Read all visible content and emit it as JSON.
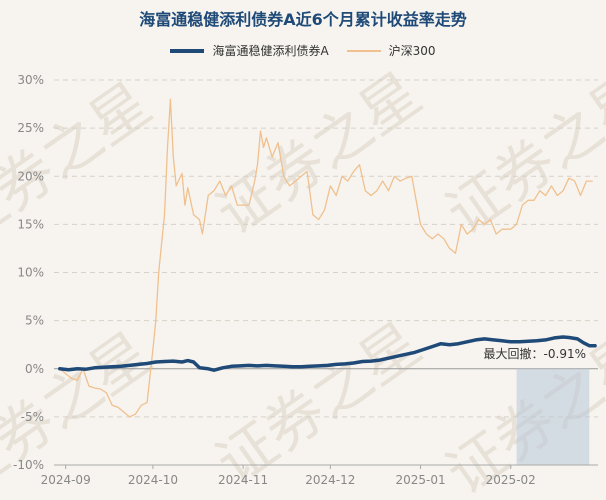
{
  "chart_data": {
    "type": "line",
    "title": "海富通稳健添利债券A近6个月累计收益率走势",
    "x_ticks": [
      "2024-09",
      "2024-10",
      "2024-11",
      "2024-12",
      "2025-01",
      "2025-02"
    ],
    "y_ticks": [
      "30%",
      "25%",
      "20%",
      "15%",
      "10%",
      "5%",
      "0%",
      "-5%",
      "-10%"
    ],
    "ylim": [
      -10,
      30
    ],
    "y_unit": "%",
    "grid": "horizontal dashed",
    "legend_position": "top-center",
    "watermark": "证券之星",
    "annotation": {
      "label": "最大回撤：-0.91%",
      "shaded_range": [
        "2025-02-03",
        "2025-02-28"
      ]
    },
    "series": [
      {
        "name": "海富通稳健添利债券A",
        "color": "#1f4a78",
        "points": [
          [
            "2024-08-30",
            0.0
          ],
          [
            "2024-09-02",
            -0.1
          ],
          [
            "2024-09-05",
            0.0
          ],
          [
            "2024-09-08",
            -0.05
          ],
          [
            "2024-09-11",
            0.1
          ],
          [
            "2024-09-14",
            0.15
          ],
          [
            "2024-09-17",
            0.2
          ],
          [
            "2024-09-20",
            0.25
          ],
          [
            "2024-09-23",
            0.35
          ],
          [
            "2024-09-26",
            0.45
          ],
          [
            "2024-09-29",
            0.55
          ],
          [
            "2024-10-02",
            0.7
          ],
          [
            "2024-10-05",
            0.75
          ],
          [
            "2024-10-08",
            0.8
          ],
          [
            "2024-10-11",
            0.7
          ],
          [
            "2024-10-13",
            0.85
          ],
          [
            "2024-10-15",
            0.7
          ],
          [
            "2024-10-17",
            0.1
          ],
          [
            "2024-10-20",
            0.0
          ],
          [
            "2024-10-22",
            -0.15
          ],
          [
            "2024-10-25",
            0.1
          ],
          [
            "2024-10-28",
            0.25
          ],
          [
            "2024-10-31",
            0.3
          ],
          [
            "2024-11-03",
            0.35
          ],
          [
            "2024-11-06",
            0.3
          ],
          [
            "2024-11-09",
            0.35
          ],
          [
            "2024-11-12",
            0.3
          ],
          [
            "2024-11-15",
            0.25
          ],
          [
            "2024-11-18",
            0.2
          ],
          [
            "2024-11-21",
            0.2
          ],
          [
            "2024-11-24",
            0.25
          ],
          [
            "2024-11-27",
            0.3
          ],
          [
            "2024-11-30",
            0.35
          ],
          [
            "2024-12-03",
            0.45
          ],
          [
            "2024-12-06",
            0.5
          ],
          [
            "2024-12-09",
            0.6
          ],
          [
            "2024-12-12",
            0.75
          ],
          [
            "2024-12-15",
            0.8
          ],
          [
            "2024-12-18",
            0.9
          ],
          [
            "2024-12-21",
            1.1
          ],
          [
            "2024-12-24",
            1.3
          ],
          [
            "2024-12-27",
            1.5
          ],
          [
            "2024-12-30",
            1.7
          ],
          [
            "2025-01-02",
            2.0
          ],
          [
            "2025-01-05",
            2.3
          ],
          [
            "2025-01-08",
            2.6
          ],
          [
            "2025-01-11",
            2.5
          ],
          [
            "2025-01-14",
            2.6
          ],
          [
            "2025-01-17",
            2.8
          ],
          [
            "2025-01-20",
            3.0
          ],
          [
            "2025-01-23",
            3.1
          ],
          [
            "2025-01-26",
            3.0
          ],
          [
            "2025-01-29",
            2.9
          ],
          [
            "2025-02-01",
            2.8
          ],
          [
            "2025-02-04",
            2.8
          ],
          [
            "2025-02-07",
            2.85
          ],
          [
            "2025-02-10",
            2.9
          ],
          [
            "2025-02-13",
            3.0
          ],
          [
            "2025-02-16",
            3.2
          ],
          [
            "2025-02-19",
            3.3
          ],
          [
            "2025-02-21",
            3.25
          ],
          [
            "2025-02-24",
            3.1
          ],
          [
            "2025-02-26",
            2.7
          ],
          [
            "2025-02-28",
            2.4
          ],
          [
            "2025-03-02",
            2.4
          ]
        ]
      },
      {
        "name": "沪深300",
        "color": "#f0c08e",
        "points": [
          [
            "2024-08-30",
            0.0
          ],
          [
            "2024-09-01",
            -0.5
          ],
          [
            "2024-09-03",
            -1.0
          ],
          [
            "2024-09-05",
            -1.2
          ],
          [
            "2024-09-07",
            0.0
          ],
          [
            "2024-09-09",
            -1.8
          ],
          [
            "2024-09-11",
            -2.0
          ],
          [
            "2024-09-13",
            -2.1
          ],
          [
            "2024-09-15",
            -2.5
          ],
          [
            "2024-09-17",
            -3.8
          ],
          [
            "2024-09-19",
            -4.0
          ],
          [
            "2024-09-21",
            -4.5
          ],
          [
            "2024-09-23",
            -5.0
          ],
          [
            "2024-09-25",
            -4.7
          ],
          [
            "2024-09-27",
            -3.8
          ],
          [
            "2024-09-29",
            -3.5
          ],
          [
            "2024-10-01",
            2.0
          ],
          [
            "2024-10-02",
            5.0
          ],
          [
            "2024-10-03",
            10.0
          ],
          [
            "2024-10-05",
            16.0
          ],
          [
            "2024-10-06",
            23.0
          ],
          [
            "2024-10-07",
            28.0
          ],
          [
            "2024-10-08",
            22.0
          ],
          [
            "2024-10-09",
            19.0
          ],
          [
            "2024-10-11",
            20.3
          ],
          [
            "2024-10-12",
            17.0
          ],
          [
            "2024-10-13",
            18.8
          ],
          [
            "2024-10-15",
            16.0
          ],
          [
            "2024-10-17",
            15.5
          ],
          [
            "2024-10-18",
            14.0
          ],
          [
            "2024-10-20",
            18.0
          ],
          [
            "2024-10-22",
            18.5
          ],
          [
            "2024-10-24",
            19.5
          ],
          [
            "2024-10-26",
            18.0
          ],
          [
            "2024-10-28",
            19.0
          ],
          [
            "2024-10-30",
            17.0
          ],
          [
            "2024-11-01",
            17.0
          ],
          [
            "2024-11-03",
            17.0
          ],
          [
            "2024-11-05",
            19.5
          ],
          [
            "2024-11-06",
            21.3
          ],
          [
            "2024-11-07",
            24.7
          ],
          [
            "2024-11-08",
            23.0
          ],
          [
            "2024-11-09",
            24.0
          ],
          [
            "2024-11-11",
            22.0
          ],
          [
            "2024-11-13",
            23.5
          ],
          [
            "2024-11-15",
            20.0
          ],
          [
            "2024-11-17",
            19.0
          ],
          [
            "2024-11-19",
            19.5
          ],
          [
            "2024-11-21",
            20.0
          ],
          [
            "2024-11-23",
            20.5
          ],
          [
            "2024-11-25",
            16.0
          ],
          [
            "2024-11-27",
            15.5
          ],
          [
            "2024-11-29",
            16.5
          ],
          [
            "2024-12-01",
            19.0
          ],
          [
            "2024-12-03",
            18.0
          ],
          [
            "2024-12-05",
            20.0
          ],
          [
            "2024-12-07",
            19.5
          ],
          [
            "2024-12-09",
            20.5
          ],
          [
            "2024-12-11",
            21.2
          ],
          [
            "2024-12-13",
            18.5
          ],
          [
            "2024-12-15",
            18.0
          ],
          [
            "2024-12-17",
            18.5
          ],
          [
            "2024-12-19",
            19.5
          ],
          [
            "2024-12-21",
            18.5
          ],
          [
            "2024-12-23",
            20.0
          ],
          [
            "2024-12-25",
            19.5
          ],
          [
            "2024-12-27",
            19.8
          ],
          [
            "2024-12-29",
            20.0
          ],
          [
            "2025-01-01",
            15.0
          ],
          [
            "2025-01-03",
            14.0
          ],
          [
            "2025-01-05",
            13.5
          ],
          [
            "2025-01-07",
            14.0
          ],
          [
            "2025-01-09",
            13.5
          ],
          [
            "2025-01-11",
            12.5
          ],
          [
            "2025-01-13",
            12.0
          ],
          [
            "2025-01-15",
            15.0
          ],
          [
            "2025-01-17",
            14.0
          ],
          [
            "2025-01-19",
            14.5
          ],
          [
            "2025-01-21",
            15.5
          ],
          [
            "2025-01-23",
            15.0
          ],
          [
            "2025-01-25",
            15.5
          ],
          [
            "2025-01-27",
            14.0
          ],
          [
            "2025-01-29",
            14.5
          ],
          [
            "2025-02-01",
            14.5
          ],
          [
            "2025-02-03",
            15.0
          ],
          [
            "2025-02-05",
            17.0
          ],
          [
            "2025-02-07",
            17.5
          ],
          [
            "2025-02-09",
            17.5
          ],
          [
            "2025-02-11",
            18.5
          ],
          [
            "2025-02-13",
            18.0
          ],
          [
            "2025-02-15",
            19.0
          ],
          [
            "2025-02-17",
            18.0
          ],
          [
            "2025-02-19",
            18.5
          ],
          [
            "2025-02-21",
            19.8
          ],
          [
            "2025-02-23",
            19.5
          ],
          [
            "2025-02-25",
            18.0
          ],
          [
            "2025-02-27",
            19.5
          ],
          [
            "2025-03-01",
            19.5
          ]
        ]
      }
    ]
  }
}
